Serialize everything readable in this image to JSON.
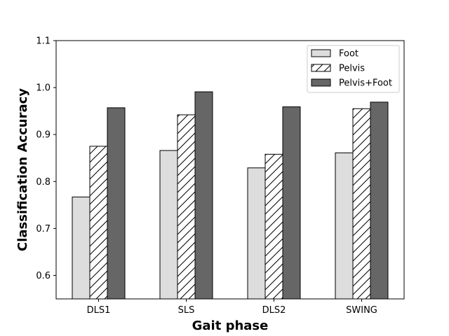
{
  "chart_data": {
    "type": "bar",
    "title": "",
    "xlabel": "Gait phase",
    "ylabel": "Classification Accuracy",
    "ylim": [
      0.55,
      1.1
    ],
    "yticks": [
      0.6,
      0.7,
      0.8,
      0.9,
      1.0,
      1.1
    ],
    "ytick_labels": [
      "0.6",
      "0.7",
      "0.8",
      "0.9",
      "1.0",
      "1.1"
    ],
    "categories": [
      "DLS1",
      "SLS",
      "DLS2",
      "SWING"
    ],
    "legend_position": "top-right",
    "grid": false,
    "series": [
      {
        "name": "Foot",
        "values": [
          0.767,
          0.866,
          0.829,
          0.861
        ],
        "color": "#dddddd",
        "pattern": "none"
      },
      {
        "name": "Pelvis",
        "values": [
          0.875,
          0.942,
          0.858,
          0.955
        ],
        "color": "#ffffff",
        "pattern": "hatch"
      },
      {
        "name": "Pelvis+Foot",
        "values": [
          0.957,
          0.991,
          0.959,
          0.969
        ],
        "color": "#666666",
        "pattern": "none"
      }
    ]
  }
}
